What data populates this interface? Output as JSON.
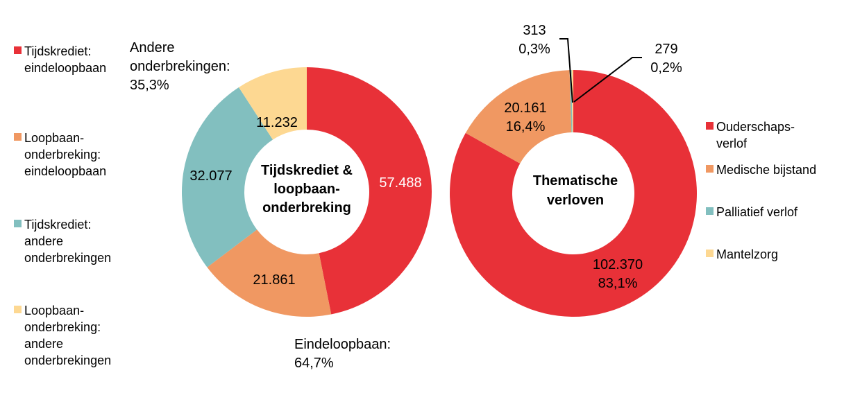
{
  "chart_data": [
    {
      "type": "donut",
      "title": [
        "Tijdskrediet &",
        "loopbaan-",
        "onderbreking"
      ],
      "categories": [
        "Tijdskrediet: eindeloopbaan",
        "Loopbaan-onderbreking: eindeloopbaan",
        "Tijdskrediet: andere onderbrekingen",
        "Loopbaan-onderbreking: andere onderbrekingen"
      ],
      "values": [
        57488,
        21861,
        32077,
        11232
      ],
      "value_labels": [
        "57.488",
        "21.861",
        "32.077",
        "11.232"
      ],
      "colors": [
        "#E83138",
        "#F09862",
        "#82BFBF",
        "#FDD892"
      ],
      "legend": {
        "placement": "left",
        "entries": [
          [
            "Tijdskrediet:",
            "eindeloopbaan"
          ],
          [
            "Loopbaan-",
            "onderbreking:",
            "eindeloopbaan"
          ],
          [
            "Tijdskrediet:",
            "andere",
            "onderbrekingen"
          ],
          [
            "Loopbaan-",
            "onderbreking:",
            "andere",
            "onderbrekingen"
          ]
        ]
      },
      "annotations": {
        "andere": [
          "Andere",
          "onderbrekingen:",
          "35,3%"
        ],
        "eindeloopbaan": [
          "Eindeloopbaan:",
          "64,7%"
        ]
      }
    },
    {
      "type": "donut",
      "title": [
        "Thematische",
        "verloven"
      ],
      "categories": [
        "Ouderschapsverlof",
        "Medische bijstand",
        "Palliatief verlof",
        "Mantelzorg"
      ],
      "values": [
        102370,
        20161,
        313,
        279
      ],
      "value_labels": [
        [
          "102.370",
          "83,1%"
        ],
        [
          "20.161",
          "16,4%"
        ],
        [
          "313",
          "0,3%"
        ],
        [
          "279",
          "0,2%"
        ]
      ],
      "colors": [
        "#E83138",
        "#F09862",
        "#82BFBF",
        "#FDD892"
      ],
      "legend": {
        "placement": "right",
        "entries": [
          [
            "Ouderschaps-",
            "verlof"
          ],
          [
            "Medische bijstand"
          ],
          [
            "Palliatief verlof"
          ],
          [
            "Mantelzorg"
          ]
        ]
      }
    }
  ]
}
